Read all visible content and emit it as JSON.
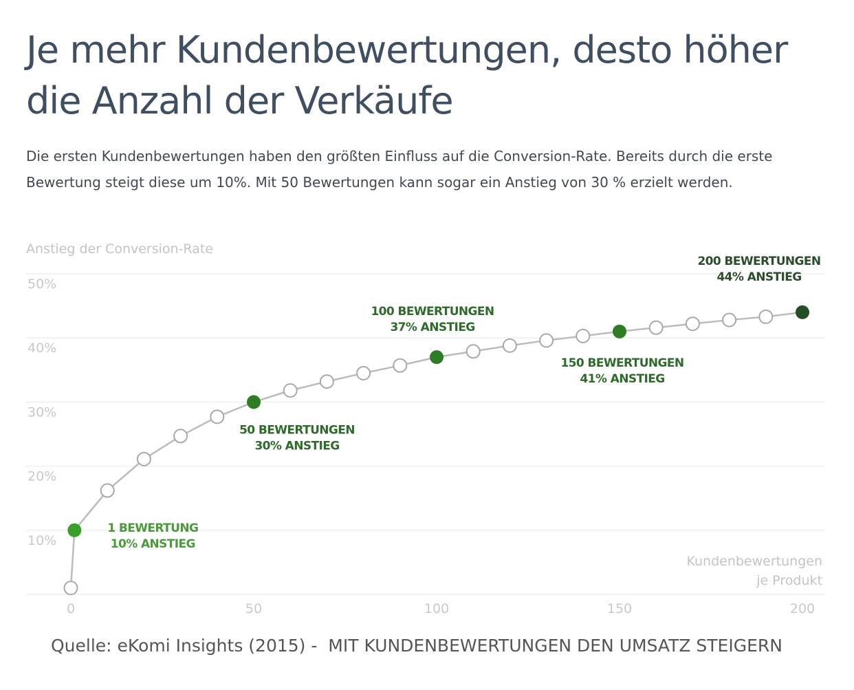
{
  "title_line1": "Je mehr Kundenbewertungen, desto höher",
  "title_line2": "die Anzahl der Verkäufe",
  "subtitle_line1": "Die ersten Kundenbewertungen haben den größten Einfluss auf die Conversion-Rate. Bereits durch die erste",
  "subtitle_line2": "Bewertung steigt diese um 10%. Mit 50 Bewertungen kann sogar ein Anstieg von 30 % erzielt werden.",
  "source": "Quelle: eKomi Insights (2015) -  MIT KUNDENBEWERTUNGEN DEN UMSATZ STEIGERN",
  "colors": {
    "text": "#3f4f61",
    "grid": "#eeeeee",
    "tick": "#c8c8c8",
    "line": "#bbbbbb",
    "marker_open_stroke": "#a8a8a8",
    "green_light": "#3a9e2a",
    "green_mid": "#2e7d24",
    "green_dark": "#234f25",
    "label_light": "#4a9a3a",
    "label_mid": "#2e6b2a",
    "label_dark": "#2b4d2d"
  },
  "chart_data": {
    "type": "line",
    "ylabel": "Anstieg der Conversion-Rate",
    "xlabel_line1": "Kundenbewertungen",
    "xlabel_line2": "je Produkt",
    "xlim": [
      0,
      200
    ],
    "ylim": [
      0,
      50
    ],
    "xticks": [
      0,
      50,
      100,
      150,
      200
    ],
    "xtick_labels": [
      "0",
      "50",
      "100",
      "150",
      "200"
    ],
    "yticks": [
      10,
      20,
      30,
      40,
      50
    ],
    "ytick_labels": [
      "10%",
      "20%",
      "30%",
      "40%",
      "50%"
    ],
    "grid": true,
    "x": [
      0,
      1,
      10,
      20,
      30,
      40,
      50,
      60,
      70,
      80,
      90,
      100,
      110,
      120,
      130,
      140,
      150,
      160,
      170,
      180,
      190,
      200
    ],
    "y": [
      1,
      10,
      16.2,
      21.1,
      24.7,
      27.7,
      30,
      31.8,
      33.2,
      34.5,
      35.7,
      37,
      37.9,
      38.8,
      39.6,
      40.3,
      41,
      41.6,
      42.2,
      42.8,
      43.3,
      44
    ],
    "highlights": [
      {
        "x": 1,
        "y": 10,
        "label_line1": "1 BEWERTUNG",
        "label_line2": "10% ANSTIEG",
        "shade": "light"
      },
      {
        "x": 50,
        "y": 30,
        "label_line1": "50 BEWERTUNGEN",
        "label_line2": "30% ANSTIEG",
        "shade": "mid"
      },
      {
        "x": 100,
        "y": 37,
        "label_line1": "100 BEWERTUNGEN",
        "label_line2": "37% ANSTIEG",
        "shade": "mid"
      },
      {
        "x": 150,
        "y": 41,
        "label_line1": "150 BEWERTUNGEN",
        "label_line2": "41% ANSTIEG",
        "shade": "mid"
      },
      {
        "x": 200,
        "y": 44,
        "label_line1": "200 BEWERTUNGEN",
        "label_line2": "44% ANSTIEG",
        "shade": "dark"
      }
    ]
  }
}
